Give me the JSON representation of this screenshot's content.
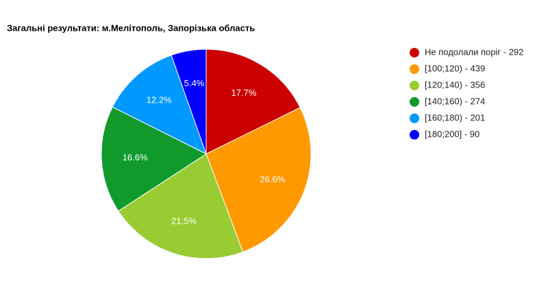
{
  "chart_data": {
    "type": "pie",
    "title": "Загальні результати: м.Мелітополь, Запорізька область",
    "categories": [
      "Не подолали поріг - 292",
      "[100;120) - 439",
      "[120;140) - 356",
      "[140;160) - 274",
      "[160;180) - 201",
      "[180;200] - 90"
    ],
    "values": [
      17.7,
      26.6,
      21.5,
      16.6,
      12.2,
      5.4
    ],
    "value_labels": [
      "17.7%",
      "26.6%",
      "21.5%",
      "16.6%",
      "12.2%",
      "5.4%"
    ],
    "colors": [
      "#cc0000",
      "#ff9900",
      "#99cc33",
      "#109a2c",
      "#0099ff",
      "#0000ff"
    ],
    "legend": "right"
  }
}
